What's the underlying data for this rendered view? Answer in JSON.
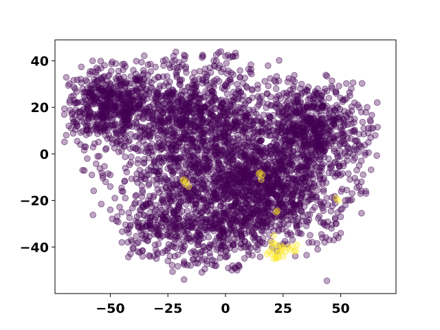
{
  "chart_data": {
    "type": "scatter",
    "title": "",
    "xlabel": "",
    "ylabel": "",
    "xlim": [
      -74,
      74
    ],
    "ylim": [
      -60,
      49
    ],
    "xticks": [
      -50,
      -25,
      0,
      25,
      50
    ],
    "yticks": [
      -40,
      -20,
      0,
      20,
      40
    ],
    "xtick_labels": [
      "−50",
      "−25",
      "0",
      "25",
      "50"
    ],
    "ytick_labels": [
      "−40",
      "−20",
      "0",
      "20",
      "40"
    ],
    "grid": false,
    "legend": "none",
    "colors": {
      "class0": "#440154",
      "class1": "#fde725"
    },
    "marker_alpha": 0.35,
    "series": [
      {
        "class": 0,
        "clusters": [
          {
            "cx": -52,
            "cy": 20,
            "sx": 9,
            "sy": 8,
            "n": 450
          },
          {
            "cx": 37,
            "cy": 10,
            "sx": 11,
            "sy": 10,
            "n": 650
          },
          {
            "cx": -15,
            "cy": -5,
            "sx": 16,
            "sy": 18,
            "n": 800
          },
          {
            "cx": 8,
            "cy": -18,
            "sx": 12,
            "sy": 10,
            "n": 500
          },
          {
            "cx": -30,
            "cy": 20,
            "sx": 12,
            "sy": 9,
            "n": 350
          },
          {
            "cx": -5,
            "cy": 15,
            "sx": 12,
            "sy": 12,
            "n": 400
          },
          {
            "cx": 20,
            "cy": -5,
            "sx": 12,
            "sy": 14,
            "n": 400
          },
          {
            "cx": 30,
            "cy": -20,
            "sx": 12,
            "sy": 8,
            "n": 220
          },
          {
            "cx": -25,
            "cy": -30,
            "sx": 10,
            "sy": 7,
            "n": 220
          },
          {
            "cx": -2,
            "cy": -35,
            "sx": 8,
            "sy": 6,
            "n": 150
          }
        ],
        "points": [
          [
            -18,
            42.5
          ],
          [
            -17.5,
            42
          ],
          [
            -26,
            40.5
          ],
          [
            -27,
            40
          ],
          [
            -10,
            42.5
          ],
          [
            -9.8,
            42
          ],
          [
            -3,
            43.5
          ],
          [
            -4,
            42.5
          ],
          [
            -2,
            44
          ],
          [
            0,
            42
          ],
          [
            1,
            42.5
          ],
          [
            2,
            41.5
          ],
          [
            3,
            42
          ],
          [
            4.5,
            42
          ],
          [
            -2.5,
            38
          ],
          [
            -1,
            36.5
          ],
          [
            -3,
            37
          ],
          [
            -21,
            37
          ],
          [
            -24,
            37
          ],
          [
            60,
            11
          ],
          [
            62,
            11
          ],
          [
            64,
            11
          ],
          [
            66,
            11.5
          ],
          [
            62,
            9
          ],
          [
            60,
            8.5
          ],
          [
            58,
            8.5
          ],
          [
            65,
            8
          ],
          [
            62,
            5
          ],
          [
            59,
            3
          ],
          [
            63,
            7
          ],
          [
            58,
            4
          ],
          [
            -68,
            12
          ],
          [
            -67,
            11
          ],
          [
            -66,
            25
          ],
          [
            -63,
            4
          ],
          [
            -60,
            -2
          ],
          [
            -62,
            -7
          ],
          [
            -58,
            -9
          ],
          [
            -50,
            -9
          ],
          [
            -50,
            -14
          ],
          [
            -45,
            -16
          ],
          [
            -52,
            -12
          ],
          [
            -48,
            -19
          ],
          [
            -45,
            -25
          ],
          [
            -50,
            -24
          ],
          [
            -42,
            -34
          ],
          [
            -41,
            -37
          ],
          [
            -45,
            -38
          ],
          [
            -38,
            -42
          ],
          [
            -36,
            -44
          ],
          [
            -30,
            -45
          ],
          [
            -25,
            -46
          ],
          [
            -18,
            -47
          ],
          [
            -12,
            -47
          ],
          [
            -8,
            -46
          ],
          [
            -4,
            -48
          ],
          [
            3,
            -48
          ],
          [
            4,
            -49
          ],
          [
            5,
            -50
          ],
          [
            6,
            -48.5
          ],
          [
            -22,
            -44
          ],
          [
            -18,
            -54
          ],
          [
            44,
            -54.5
          ],
          [
            42,
            -36
          ],
          [
            43,
            -38
          ],
          [
            45,
            -37
          ],
          [
            47,
            -37
          ],
          [
            49,
            -36
          ],
          [
            50,
            -34
          ],
          [
            48,
            -35
          ],
          [
            40,
            -41
          ],
          [
            54,
            -11
          ],
          [
            57,
            -12
          ],
          [
            59,
            -12
          ],
          [
            58,
            -14
          ],
          [
            59,
            -16
          ],
          [
            61,
            -17
          ],
          [
            55,
            -17
          ],
          [
            54,
            -20
          ],
          [
            50,
            -24
          ],
          [
            50,
            -27
          ],
          [
            48,
            -30
          ],
          [
            46,
            -32
          ],
          [
            52,
            -20
          ],
          [
            52,
            -22
          ],
          [
            57,
            -14.5
          ],
          [
            58,
            20
          ],
          [
            59,
            18
          ],
          [
            56,
            22
          ],
          [
            54,
            25
          ],
          [
            58,
            -5
          ],
          [
            59,
            -3
          ],
          [
            57,
            -7
          ],
          [
            -44,
            33
          ],
          [
            -40,
            36
          ],
          [
            -38,
            33
          ],
          [
            -36,
            34
          ],
          [
            -46,
            31
          ],
          [
            30,
            31
          ],
          [
            33,
            30
          ],
          [
            27,
            31
          ],
          [
            22,
            28
          ],
          [
            40,
            28
          ],
          [
            44,
            27
          ],
          [
            46,
            29
          ],
          [
            48,
            26
          ],
          [
            54,
            17
          ],
          [
            56,
            15
          ],
          [
            12,
            -36
          ],
          [
            16,
            -38
          ],
          [
            13,
            -40
          ],
          [
            8,
            -40
          ],
          [
            10,
            -42
          ],
          [
            -58,
            28
          ],
          [
            -56,
            31
          ],
          [
            -62,
            28
          ],
          [
            -65,
            22
          ],
          [
            -64,
            18
          ],
          [
            -5,
            30
          ],
          [
            -10,
            32
          ],
          [
            -14,
            31
          ],
          [
            -20,
            30
          ],
          [
            -8,
            34
          ],
          [
            2,
            32
          ],
          [
            5,
            30
          ],
          [
            9,
            29
          ],
          [
            14,
            28
          ],
          [
            18,
            26
          ]
        ]
      },
      {
        "class": 1,
        "points": [
          [
            20,
            -40
          ],
          [
            21,
            -42
          ],
          [
            22,
            -44
          ],
          [
            23,
            -43
          ],
          [
            24,
            -42
          ],
          [
            20,
            -43
          ],
          [
            19,
            -42
          ],
          [
            21,
            -45
          ],
          [
            22,
            -45
          ],
          [
            23,
            -44.5
          ],
          [
            25,
            -44
          ],
          [
            26,
            -42
          ],
          [
            25,
            -40
          ],
          [
            24,
            -39.5
          ],
          [
            22,
            -39
          ],
          [
            21,
            -38.5
          ],
          [
            20,
            -38
          ],
          [
            27,
            -40
          ],
          [
            28,
            -41
          ],
          [
            30,
            -42
          ],
          [
            30.5,
            -41.5
          ],
          [
            29,
            -40
          ],
          [
            31,
            -39
          ],
          [
            21,
            -35
          ],
          [
            22,
            -44.5
          ],
          [
            24.5,
            -41
          ],
          [
            23,
            -41
          ],
          [
            18,
            -43
          ],
          [
            -18,
            -11
          ],
          [
            -17,
            -12
          ],
          [
            -16,
            -14
          ],
          [
            -17.5,
            -13
          ],
          [
            -18.5,
            -11.5
          ],
          [
            15,
            -8
          ],
          [
            16,
            -9
          ],
          [
            15.5,
            -11
          ],
          [
            14.5,
            -8.5
          ],
          [
            22,
            -25
          ],
          [
            22.5,
            -24.5
          ],
          [
            48,
            -19
          ],
          [
            49,
            -20
          ]
        ]
      }
    ]
  }
}
